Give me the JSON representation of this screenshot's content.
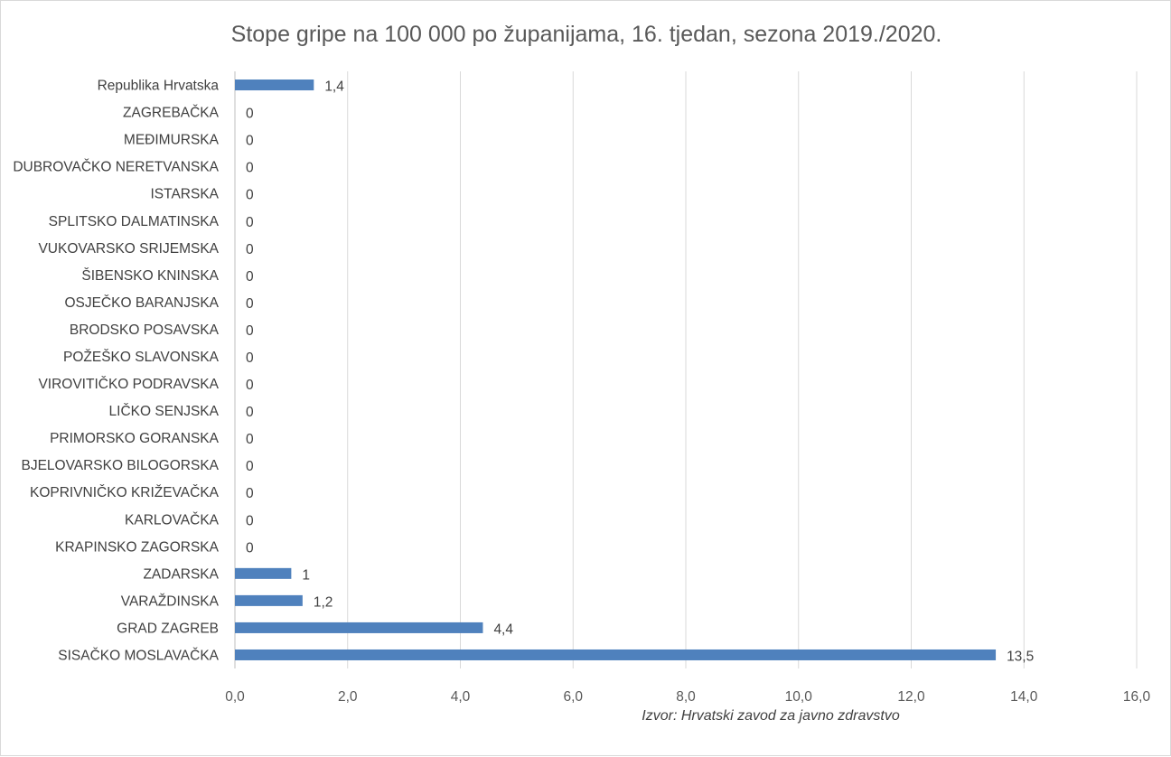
{
  "chart_data": {
    "type": "bar",
    "orientation": "horizontal",
    "title": "Stope gripe na 100 000 po županijama, 16. tjedan, sezona 2019./2020.",
    "categories": [
      "Republika Hrvatska",
      "ZAGREBAČKA",
      "MEĐIMURSKA",
      "DUBROVAČKO NERETVANSKA",
      "ISTARSKA",
      "SPLITSKO DALMATINSKA",
      "VUKOVARSKO SRIJEMSKA",
      "ŠIBENSKO KNINSKA",
      "OSJEČKO BARANJSKA",
      "BRODSKO POSAVSKA",
      "POŽEŠKO SLAVONSKA",
      "VIROVITIČKO PODRAVSKA",
      "LIČKO SENJSKA",
      "PRIMORSKO GORANSKA",
      "BJELOVARSKO BILOGORSKA",
      "KOPRIVNIČKO KRIŽEVAČKA",
      "KARLOVAČKA",
      "KRAPINSKO ZAGORSKA",
      "ZADARSKA",
      "VARAŽDINSKA",
      "GRAD ZAGREB",
      "SISAČKO MOSLAVAČKA"
    ],
    "values": [
      1.4,
      0,
      0,
      0,
      0,
      0,
      0,
      0,
      0,
      0,
      0,
      0,
      0,
      0,
      0,
      0,
      0,
      0,
      1,
      1.2,
      4.4,
      13.5
    ],
    "data_labels": [
      "1,4",
      "0",
      "0",
      "0",
      "0",
      "0",
      "0",
      "0",
      "0",
      "0",
      "0",
      "0",
      "0",
      "0",
      "0",
      "0",
      "0",
      "0",
      "1",
      "1,2",
      "4,4",
      "13,5"
    ],
    "xlim": [
      0,
      16
    ],
    "x_ticks": [
      "0,0",
      "2,0",
      "4,0",
      "6,0",
      "8,0",
      "10,0",
      "12,0",
      "14,0",
      "16,0"
    ],
    "grid": "vertical",
    "bar_color": "#4f81bd",
    "gridline_color": "#d9d9d9",
    "source": "Izvor: Hrvatski zavod za javno zdravstvo"
  }
}
